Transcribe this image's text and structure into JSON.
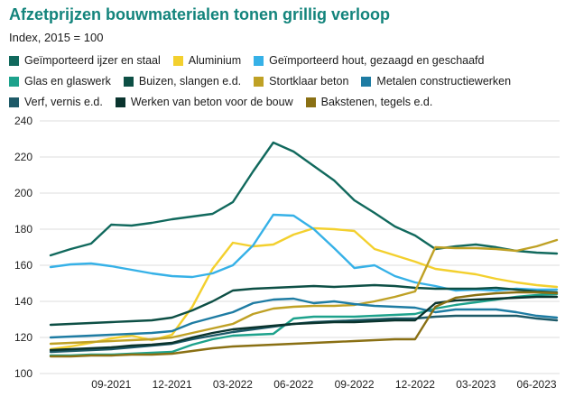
{
  "header": {
    "title": "Afzetprijzen bouwmaterialen tonen grillig verloop",
    "subtitle": "Index, 2015 = 100"
  },
  "chart_data": {
    "type": "line",
    "title": "Afzetprijzen bouwmaterialen tonen grillig verloop",
    "subtitle": "Index, 2015 = 100",
    "grid": true,
    "legend_position": "top",
    "ylim": [
      100,
      240
    ],
    "y_ticks": [
      240,
      220,
      200,
      180,
      160,
      140,
      120,
      100
    ],
    "x_tick_labels": [
      "09-2021",
      "12-2021",
      "03-2022",
      "06-2022",
      "09-2022",
      "12-2022",
      "03-2023",
      "06-2023"
    ],
    "x_tick_month_indices": [
      3,
      6,
      9,
      12,
      15,
      18,
      21,
      24
    ],
    "months": [
      "06-2021",
      "07-2021",
      "08-2021",
      "09-2021",
      "10-2021",
      "11-2021",
      "12-2021",
      "01-2022",
      "02-2022",
      "03-2022",
      "04-2022",
      "05-2022",
      "06-2022",
      "07-2022",
      "08-2022",
      "09-2022",
      "10-2022",
      "11-2022",
      "12-2022",
      "01-2023",
      "02-2023",
      "03-2023",
      "04-2023",
      "05-2023",
      "06-2023",
      "07-2023"
    ],
    "series": [
      {
        "name": "Geïmporteerd ijzer en staal",
        "color": "#11695d",
        "values": [
          165.5,
          169,
          172,
          182.5,
          182,
          183.5,
          185.5,
          187,
          188.5,
          195,
          212,
          228,
          223,
          215,
          207,
          196,
          189,
          181.5,
          176.5,
          169,
          170.5,
          171.5,
          170,
          168,
          167,
          166.5
        ]
      },
      {
        "name": "Aluminium",
        "color": "#f3d02e",
        "values": [
          113.5,
          115,
          117,
          119.5,
          121,
          118.5,
          121.5,
          137,
          158,
          172.5,
          170.5,
          171.5,
          177,
          180.5,
          180,
          179,
          169,
          165.5,
          162,
          158,
          156.5,
          155,
          152.5,
          150.5,
          149,
          148
        ]
      },
      {
        "name": "Geïmporteerd hout, gezaagd en geschaafd",
        "color": "#36b1e7",
        "values": [
          159,
          160.5,
          161,
          159.5,
          157.5,
          155.5,
          154,
          153.5,
          155.5,
          160,
          171,
          188,
          187.5,
          180,
          169.5,
          158.5,
          160,
          154,
          150.5,
          148.5,
          146,
          146.5,
          146,
          147,
          146.5,
          146.5
        ]
      },
      {
        "name": "Glas en glaswerk",
        "color": "#1da28c",
        "values": [
          110,
          110,
          110.5,
          110.5,
          111,
          111.5,
          112,
          116,
          119,
          121,
          121.5,
          122,
          130.5,
          131.5,
          131.5,
          131.5,
          132,
          132.5,
          133,
          136,
          138,
          139.5,
          141,
          142.5,
          143.5,
          144
        ]
      },
      {
        "name": "Buizen, slangen e.d.",
        "color": "#0d4f45",
        "values": [
          127,
          127.5,
          128,
          128.5,
          129,
          129.5,
          131,
          135,
          140,
          146,
          147,
          147.5,
          148,
          148.5,
          148,
          148.5,
          149,
          148.5,
          147.5,
          147,
          147,
          147,
          147.5,
          146.5,
          145.5,
          145
        ]
      },
      {
        "name": "Stortklaar beton",
        "color": "#bfa125",
        "values": [
          116.5,
          117,
          117.5,
          118,
          118.5,
          119,
          120,
          122.5,
          125,
          127.5,
          133,
          136,
          137,
          137.5,
          137.5,
          138,
          140,
          142.5,
          145.5,
          170,
          169.5,
          169.5,
          169,
          168,
          170.5,
          174
        ]
      },
      {
        "name": "Metalen constructiewerken",
        "color": "#1e7ca3",
        "values": [
          120,
          120.5,
          121,
          121.5,
          122,
          122.5,
          123.5,
          128,
          131,
          134,
          139,
          141,
          141.5,
          139,
          140,
          138.5,
          137.5,
          137,
          136.5,
          134,
          135.5,
          135.5,
          135.5,
          134,
          132,
          131
        ]
      },
      {
        "name": "Verf, vernis e.d.",
        "color": "#1e5a68",
        "values": [
          112,
          112.5,
          113,
          113.5,
          114.5,
          115.5,
          116.5,
          119,
          121,
          123,
          124.5,
          126,
          127.5,
          128.5,
          129,
          129.5,
          130,
          130.5,
          130.5,
          131.5,
          132,
          132,
          132,
          132,
          130.5,
          129.5
        ]
      },
      {
        "name": "Werken van beton voor de bouw",
        "color": "#0a342e",
        "values": [
          113,
          113.5,
          114,
          114.5,
          115.5,
          116,
          117,
          120,
          122.5,
          124.5,
          125.5,
          126.5,
          127.5,
          128,
          128.5,
          128.5,
          129,
          129.5,
          129.5,
          139,
          140.5,
          141,
          141.5,
          142,
          142.5,
          142.5
        ]
      },
      {
        "name": "Bakstenen, tegels e.d.",
        "color": "#8a7014",
        "values": [
          109.5,
          109.5,
          110,
          110,
          110.5,
          110.5,
          111,
          112.5,
          114,
          115,
          115.5,
          116,
          116.5,
          117,
          117.5,
          118,
          118.5,
          119,
          119,
          137,
          142,
          143.5,
          144.5,
          145,
          145,
          144.5
        ]
      }
    ]
  }
}
